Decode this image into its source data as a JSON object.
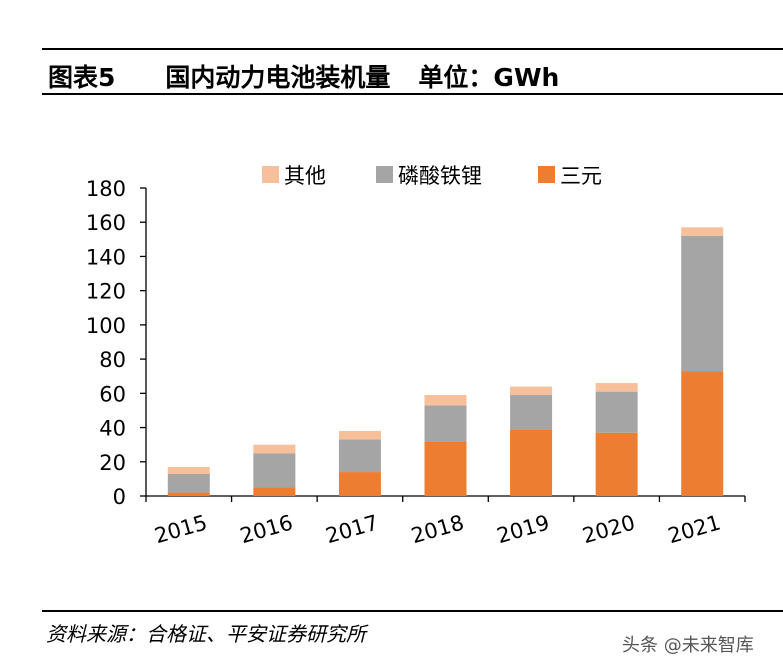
{
  "header": {
    "figure_number": "图表5",
    "title": "国内动力电池装机量",
    "unit": "单位：GWh"
  },
  "chart_data": {
    "type": "bar",
    "stacked": true,
    "categories": [
      "2015",
      "2016",
      "2017",
      "2018",
      "2019",
      "2020",
      "2021"
    ],
    "series": [
      {
        "name": "三元",
        "color": "#ED7D31",
        "values": [
          2,
          5,
          14,
          32,
          39,
          37,
          73
        ]
      },
      {
        "name": "磷酸铁锂",
        "color": "#A5A5A5",
        "values": [
          11,
          20,
          19,
          21,
          20,
          24,
          79
        ]
      },
      {
        "name": "其他",
        "color": "#F8C09A",
        "values": [
          4,
          5,
          5,
          6,
          5,
          5,
          5
        ]
      }
    ],
    "legend_order": [
      "其他",
      "磷酸铁锂",
      "三元"
    ],
    "yticks": [
      "0",
      "20",
      "40",
      "60",
      "80",
      "100",
      "120",
      "140",
      "160",
      "180"
    ],
    "ylim": [
      0,
      180
    ],
    "grid": false,
    "legend_position": "top"
  },
  "footer": {
    "source": "资料来源：合格证、平安证券研究所",
    "watermark": "头条 @未来智库"
  }
}
